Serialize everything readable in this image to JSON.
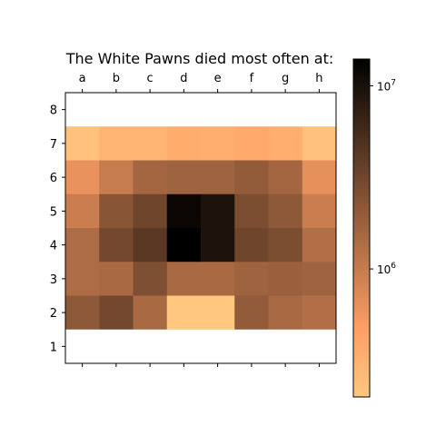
{
  "chart_data": {
    "type": "heatmap",
    "title": "The White Pawns died most often at:",
    "x_categories": [
      "a",
      "b",
      "c",
      "d",
      "e",
      "f",
      "g",
      "h"
    ],
    "y_categories": [
      "8",
      "7",
      "6",
      "5",
      "4",
      "3",
      "2",
      "1"
    ],
    "xlabel": "",
    "ylabel": "",
    "colormap": "copper_r",
    "color_scale": "log",
    "colorbar": {
      "range": [
        200000,
        14000000
      ],
      "ticks": [
        {
          "value": 1000000,
          "base": "10",
          "exp": "6"
        },
        {
          "value": 10000000,
          "base": "10",
          "exp": "7"
        }
      ]
    },
    "grid": false,
    "x_ticks_position": "top-and-bottom",
    "values": [
      [
        0,
        0,
        0,
        0,
        0,
        0,
        0,
        0
      ],
      [
        230000,
        300000,
        300000,
        360000,
        340000,
        380000,
        340000,
        230000
      ],
      [
        620000,
        1000000,
        1600000,
        1700000,
        1700000,
        2000000,
        1600000,
        650000
      ],
      [
        950000,
        2300000,
        3200000,
        12000000,
        9500000,
        2700000,
        2100000,
        950000
      ],
      [
        1400000,
        3000000,
        4200000,
        14000000,
        9500000,
        3200000,
        2700000,
        1300000
      ],
      [
        1400000,
        1500000,
        2600000,
        1500000,
        1500000,
        1700000,
        1800000,
        1700000
      ],
      [
        2100000,
        3000000,
        1500000,
        200000,
        200000,
        2000000,
        1500000,
        1300000
      ],
      [
        0,
        0,
        0,
        0,
        0,
        0,
        0,
        0
      ]
    ]
  }
}
